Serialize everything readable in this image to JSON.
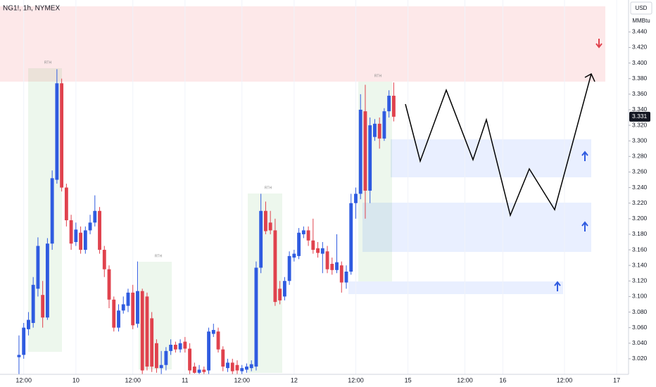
{
  "chart_data": {
    "type": "candlestick",
    "title": "NG1!, 1h, NYMEX",
    "currency": "USD",
    "unit": "MMBtu",
    "up_color": "#2f5be0",
    "down_color": "#e0424d",
    "last_price": 3.331,
    "annotations": [
      "RTH",
      "RTH",
      "RTH",
      "RTH"
    ],
    "xlim": [
      -4,
      128.5
    ],
    "xticks": [
      {
        "value": 1,
        "label": "12:00"
      },
      {
        "value": 12,
        "label": "10"
      },
      {
        "value": 24,
        "label": "12:00"
      },
      {
        "value": 35,
        "label": "11"
      },
      {
        "value": 47,
        "label": "12:00"
      },
      {
        "value": 58,
        "label": "12"
      },
      {
        "value": 71,
        "label": "12:00"
      },
      {
        "value": 82,
        "label": "15"
      },
      {
        "value": 94,
        "label": "12:00"
      },
      {
        "value": 102,
        "label": "16"
      },
      {
        "value": 115,
        "label": "12:00"
      },
      {
        "value": 126,
        "label": "17"
      }
    ],
    "ylim": [
      3.0,
      3.481
    ],
    "yticks": [
      {
        "value": 3.02,
        "label": "3.020"
      },
      {
        "value": 3.04,
        "label": "3.040"
      },
      {
        "value": 3.06,
        "label": "3.060"
      },
      {
        "value": 3.08,
        "label": "3.080"
      },
      {
        "value": 3.1,
        "label": "3.100"
      },
      {
        "value": 3.12,
        "label": "3.120"
      },
      {
        "value": 3.14,
        "label": "3.140"
      },
      {
        "value": 3.16,
        "label": "3.160"
      },
      {
        "value": 3.18,
        "label": "3.180"
      },
      {
        "value": 3.2,
        "label": "3.200"
      },
      {
        "value": 3.22,
        "label": "3.220"
      },
      {
        "value": 3.24,
        "label": "3.240"
      },
      {
        "value": 3.26,
        "label": "3.260"
      },
      {
        "value": 3.28,
        "label": "3.280"
      },
      {
        "value": 3.3,
        "label": "3.300"
      },
      {
        "value": 3.32,
        "label": "3.320"
      },
      {
        "value": 3.34,
        "label": "3.340"
      },
      {
        "value": 3.36,
        "label": "3.360"
      },
      {
        "value": 3.38,
        "label": "3.380"
      },
      {
        "value": 3.4,
        "label": "3.400"
      },
      {
        "value": 3.42,
        "label": "3.420"
      },
      {
        "value": 3.44,
        "label": "3.440"
      }
    ],
    "open": [
      3.022,
      3.025,
      3.058,
      3.066,
      3.11,
      3.102,
      3.073,
      3.168,
      3.25,
      3.374,
      3.24,
      3.198,
      3.17,
      3.182,
      3.16,
      3.185,
      3.195,
      3.21,
      3.16,
      3.135,
      3.096,
      3.06,
      3.082,
      3.088,
      3.105,
      3.065,
      3.107,
      3.1,
      3.072,
      3.04,
      3.008,
      3.012,
      3.03,
      3.038,
      3.032,
      3.042,
      3.033,
      3.01,
      3.002,
      3.006,
      3.005,
      3.052,
      3.055,
      3.032,
      3.008,
      3.015,
      3.012,
      3.004,
      3.006,
      3.008,
      3.01,
      3.137,
      3.21,
      3.195,
      3.185,
      3.11,
      3.1,
      3.12,
      3.15,
      3.152,
      3.18,
      3.185,
      3.172,
      3.162,
      3.155,
      3.158,
      3.142,
      3.134,
      3.14,
      3.118,
      3.132,
      3.22,
      3.232,
      3.338,
      3.236,
      3.305,
      3.322,
      3.303,
      3.338,
      3.358
    ],
    "high": [
      3.05,
      3.066,
      3.08,
      3.125,
      3.176,
      3.12,
      3.175,
      3.262,
      3.392,
      3.38,
      3.245,
      3.205,
      3.195,
      3.19,
      3.19,
      3.205,
      3.23,
      3.215,
      3.165,
      3.14,
      3.1,
      3.09,
      3.1,
      3.11,
      3.115,
      3.145,
      3.11,
      3.105,
      3.08,
      3.045,
      3.03,
      3.035,
      3.045,
      3.042,
      3.045,
      3.048,
      3.04,
      3.015,
      3.012,
      3.01,
      3.06,
      3.065,
      3.06,
      3.036,
      3.02,
      3.02,
      3.018,
      3.012,
      3.014,
      3.018,
      3.145,
      3.232,
      3.222,
      3.21,
      3.2,
      3.12,
      3.125,
      3.158,
      3.16,
      3.188,
      3.19,
      3.19,
      3.2,
      3.17,
      3.17,
      3.165,
      3.15,
      3.18,
      3.145,
      3.14,
      3.232,
      3.24,
      3.36,
      3.372,
      3.33,
      3.328,
      3.33,
      3.342,
      3.365,
      3.375
    ],
    "low": [
      3.0,
      3.02,
      3.05,
      3.06,
      3.1,
      3.06,
      3.07,
      3.16,
      3.245,
      3.235,
      3.19,
      3.16,
      3.165,
      3.155,
      3.155,
      3.18,
      3.19,
      3.155,
      3.125,
      3.085,
      3.055,
      3.055,
      3.078,
      3.08,
      3.058,
      3.06,
      3.0,
      3.005,
      3.003,
      3.002,
      3.0,
      3.005,
      3.025,
      3.028,
      3.028,
      3.028,
      3.0,
      3.001,
      3.0,
      3.0,
      3.0,
      3.048,
      3.028,
      3.004,
      3.003,
      3.0,
      3.0,
      3.0,
      3.002,
      3.004,
      3.005,
      3.13,
      3.18,
      3.18,
      3.088,
      3.09,
      3.095,
      3.115,
      3.145,
      3.148,
      3.175,
      3.165,
      3.155,
      3.15,
      3.13,
      3.13,
      3.128,
      3.13,
      3.105,
      3.11,
      3.128,
      3.2,
      3.225,
      3.2,
      3.22,
      3.3,
      3.29,
      3.3,
      3.33,
      3.325
    ],
    "close": [
      3.025,
      3.06,
      3.07,
      3.115,
      3.165,
      3.073,
      3.168,
      3.252,
      3.374,
      3.24,
      3.198,
      3.168,
      3.186,
      3.16,
      3.185,
      3.195,
      3.21,
      3.16,
      3.135,
      3.096,
      3.06,
      3.082,
      3.09,
      3.105,
      3.063,
      3.107,
      3.005,
      3.01,
      3.01,
      3.008,
      3.012,
      3.03,
      3.038,
      3.032,
      3.04,
      3.033,
      3.005,
      3.002,
      3.006,
      3.003,
      3.055,
      3.057,
      3.032,
      3.01,
      3.015,
      3.004,
      3.005,
      3.008,
      3.01,
      3.013,
      3.137,
      3.21,
      3.184,
      3.185,
      3.093,
      3.095,
      3.12,
      3.152,
      3.155,
      3.182,
      3.185,
      3.172,
      3.16,
      3.156,
      3.162,
      3.135,
      3.134,
      3.144,
      3.118,
      3.132,
      3.22,
      3.232,
      3.34,
      3.236,
      3.32,
      3.322,
      3.303,
      3.338,
      3.358,
      3.331
    ]
  }
}
